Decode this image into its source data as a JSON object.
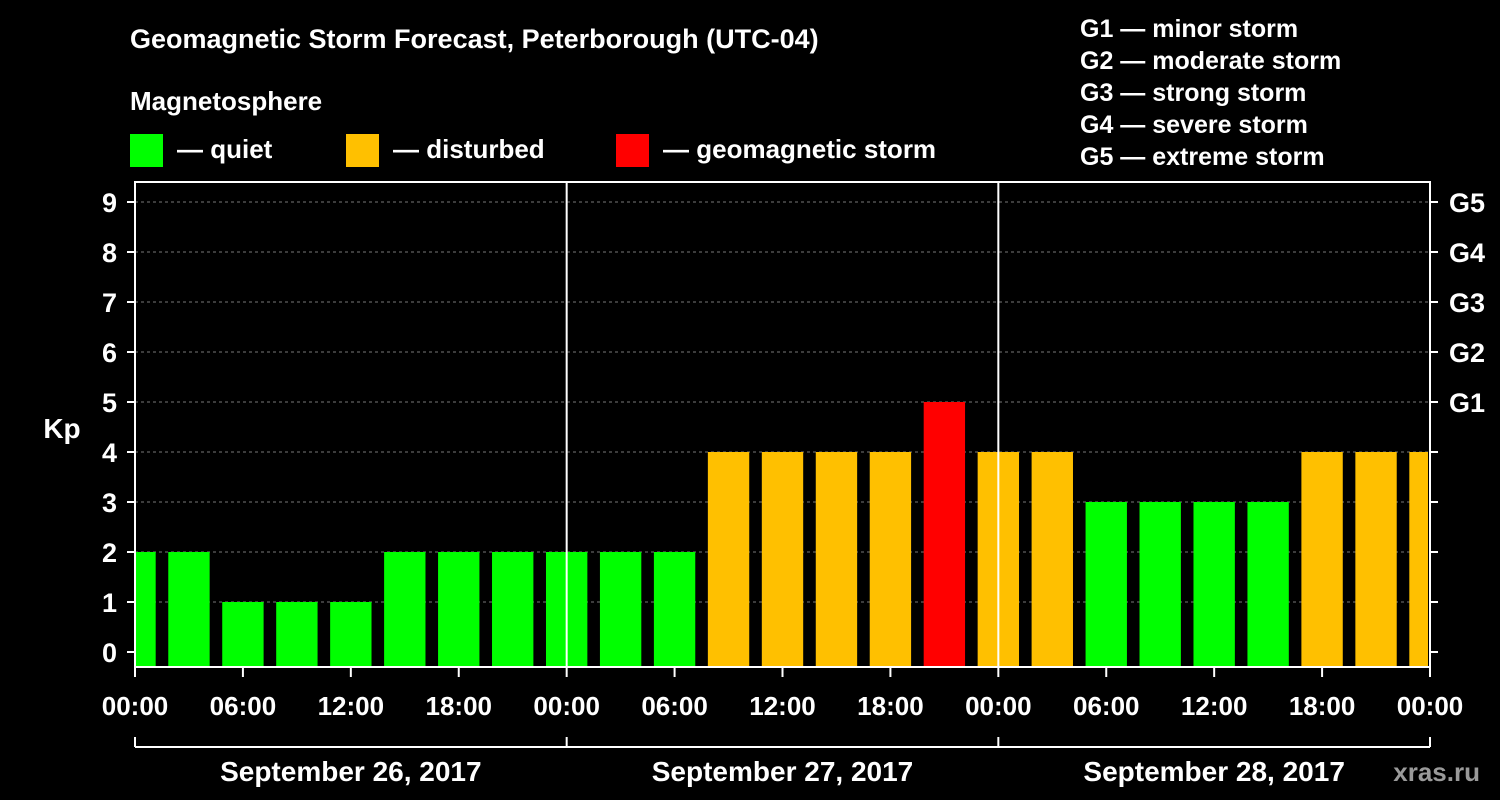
{
  "chart_data": {
    "type": "bar",
    "title": "Geomagnetic Storm Forecast, Peterborough (UTC-04)",
    "ylabel": "Kp",
    "ylim": [
      0,
      9
    ],
    "y_ticks": [
      "0",
      "1",
      "2",
      "3",
      "4",
      "5",
      "6",
      "7",
      "8",
      "9"
    ],
    "right_ticks": [
      {
        "kp": 5,
        "label": "G1"
      },
      {
        "kp": 6,
        "label": "G2"
      },
      {
        "kp": 7,
        "label": "G3"
      },
      {
        "kp": 8,
        "label": "G4"
      },
      {
        "kp": 9,
        "label": "G5"
      }
    ],
    "x_ticks": [
      "00:00",
      "06:00",
      "12:00",
      "18:00",
      "00:00",
      "06:00",
      "12:00",
      "18:00",
      "00:00",
      "06:00",
      "12:00",
      "18:00",
      "00:00"
    ],
    "days": [
      "September 26, 2017",
      "September 27, 2017",
      "September 28, 2017"
    ],
    "interval_hours": 3,
    "values": [
      2,
      2,
      1,
      1,
      1,
      2,
      2,
      2,
      2,
      2,
      2,
      4,
      4,
      4,
      4,
      5,
      4,
      4,
      3,
      3,
      3,
      3,
      4,
      4,
      4
    ],
    "legend": {
      "heading": "Magnetosphere",
      "items": [
        {
          "label": "— quiet",
          "color": "#00ff00"
        },
        {
          "label": "— disturbed",
          "color": "#ffc000"
        },
        {
          "label": "— geomagnetic storm",
          "color": "#ff0000"
        }
      ]
    },
    "g_scale": [
      "G1 — minor storm",
      "G2 — moderate storm",
      "G3 — strong storm",
      "G4 — severe storm",
      "G5 — extreme storm"
    ],
    "watermark": "xras.ru"
  }
}
